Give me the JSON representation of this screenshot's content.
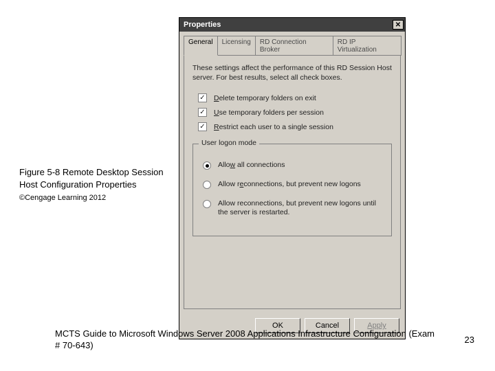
{
  "caption": {
    "title": "Figure 5-8 Remote Desktop Session Host Configuration Properties",
    "copyright": "©Cengage Learning 2012"
  },
  "footer": {
    "text": "MCTS Guide to Microsoft Windows Server 2008 Applications Infrastructure Configuration (Exam # 70-643)",
    "page": "23"
  },
  "dialog": {
    "title": "Properties",
    "tabs": {
      "general": "General",
      "licensing": "Licensing",
      "broker": "RD Connection Broker",
      "ipvirt": "RD IP Virtualization"
    },
    "intro": "These settings affect the performance of this RD Session Host server. For best results, select all check boxes.",
    "check1_pre": "D",
    "check1_rest": "elete temporary folders on exit",
    "check2_pre": "U",
    "check2_rest": "se temporary folders per session",
    "check3_pre": "R",
    "check3_rest": "estrict each user to a single session",
    "group_title": "User logon mode",
    "radio1_pre": "Allo",
    "radio1_u": "w",
    "radio1_rest": " all connections",
    "radio2_pre": "Allow r",
    "radio2_u": "e",
    "radio2_rest": "connections, but prevent new logons",
    "radio3": "Allow reconnections, but prevent new logons until the server is restarted.",
    "buttons": {
      "ok": "OK",
      "cancel": "Cancel",
      "apply": "Apply"
    }
  },
  "colors": {
    "dialog_bg": "#d4d0c8",
    "titlebar_bg": "#404040",
    "border": "#808080"
  }
}
